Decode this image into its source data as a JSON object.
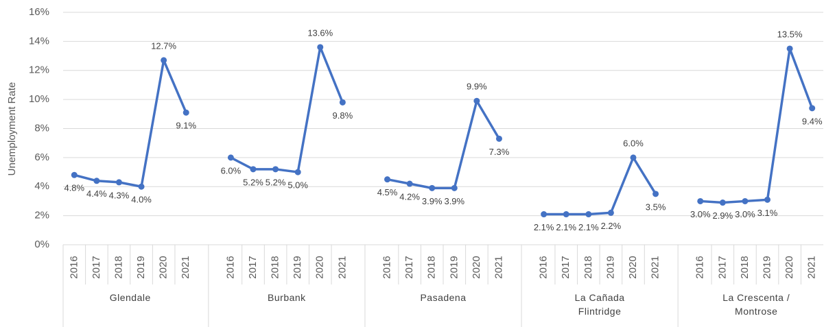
{
  "chart_data": {
    "type": "line",
    "y_label": "Unemployment Rate",
    "categories": [
      "2016",
      "2017",
      "2018",
      "2019",
      "2020",
      "2021"
    ],
    "color": "#4472c4",
    "series": [
      {
        "name": "Glendale",
        "values": [
          4.8,
          4.4,
          4.3,
          4.0,
          12.7,
          9.1
        ],
        "value_labels": [
          "4.8%",
          "4.4%",
          "4.3%",
          "4.0%",
          "12.7%",
          "9.1%"
        ]
      },
      {
        "name": "Burbank",
        "values": [
          6.0,
          5.2,
          5.2,
          5.0,
          13.6,
          9.8
        ],
        "value_labels": [
          "6.0%",
          "5.2%",
          "5.2%",
          "5.0%",
          "13.6%",
          "9.8%"
        ]
      },
      {
        "name": "Pasadena",
        "values": [
          4.5,
          4.2,
          3.9,
          3.9,
          9.9,
          7.3
        ],
        "value_labels": [
          "4.5%",
          "4.2%",
          "3.9%",
          "3.9%",
          "9.9%",
          "7.3%"
        ]
      },
      {
        "name": "La Cañada Flintridge",
        "values": [
          2.1,
          2.1,
          2.1,
          2.2,
          6.0,
          3.5
        ],
        "value_labels": [
          "2.1%",
          "2.1%",
          "2.1%",
          "2.2%",
          "6.0%",
          "3.5%"
        ]
      },
      {
        "name": "La Crescenta / Montrose",
        "values": [
          3.0,
          2.9,
          3.0,
          3.1,
          13.5,
          9.4
        ],
        "value_labels": [
          "3.0%",
          "2.9%",
          "3.0%",
          "3.1%",
          "13.5%",
          "9.4%"
        ]
      }
    ],
    "ylim": [
      0,
      16
    ],
    "yticks": [
      {
        "value": 0,
        "label": "0%"
      },
      {
        "value": 2,
        "label": "2%"
      },
      {
        "value": 4,
        "label": "4%"
      },
      {
        "value": 6,
        "label": "6%"
      },
      {
        "value": 8,
        "label": "8%"
      },
      {
        "value": 10,
        "label": "10%"
      },
      {
        "value": 12,
        "label": "12%"
      },
      {
        "value": 14,
        "label": "14%"
      },
      {
        "value": 16,
        "label": "16%"
      }
    ],
    "grid": true
  }
}
